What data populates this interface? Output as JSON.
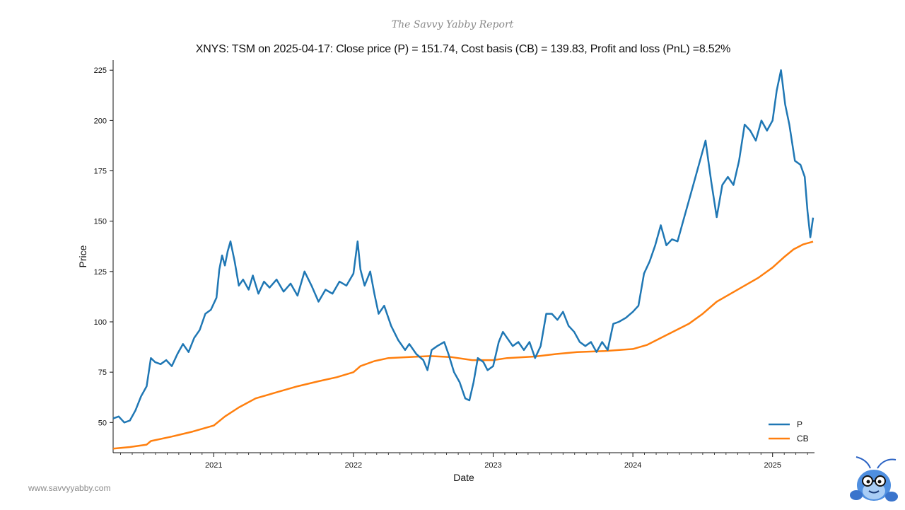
{
  "header": {
    "report_name": "The Savvy Yabby Report"
  },
  "footer": {
    "website": "www.savvyyabby.com"
  },
  "logo": {
    "icon": "yabby-mascot-icon"
  },
  "chart_data": {
    "type": "line",
    "title": "XNYS: TSM on 2025-04-17: Close price (P) = 151.74, Cost basis (CB) = 139.83, Profit and loss (PnL) =8.52%",
    "xlabel": "Date",
    "ylabel": "Price",
    "xlim": [
      2020.28,
      2025.3
    ],
    "ylim": [
      35,
      230
    ],
    "yticks": [
      50,
      75,
      100,
      125,
      150,
      175,
      200,
      225
    ],
    "xticks": [
      {
        "value": 2021,
        "label": "2021"
      },
      {
        "value": 2022,
        "label": "2022"
      },
      {
        "value": 2023,
        "label": "2023"
      },
      {
        "value": 2024,
        "label": "2024"
      },
      {
        "value": 2025,
        "label": "2025"
      }
    ],
    "legend": {
      "position": "lower-right",
      "entries": [
        "P",
        "CB"
      ]
    },
    "series": [
      {
        "name": "P",
        "color": "#1f77b4",
        "points": [
          [
            2020.28,
            52
          ],
          [
            2020.32,
            53
          ],
          [
            2020.36,
            50
          ],
          [
            2020.4,
            51
          ],
          [
            2020.44,
            56
          ],
          [
            2020.48,
            63
          ],
          [
            2020.52,
            68
          ],
          [
            2020.55,
            82
          ],
          [
            2020.58,
            80
          ],
          [
            2020.62,
            79
          ],
          [
            2020.66,
            81
          ],
          [
            2020.7,
            78
          ],
          [
            2020.74,
            84
          ],
          [
            2020.78,
            89
          ],
          [
            2020.82,
            85
          ],
          [
            2020.86,
            92
          ],
          [
            2020.9,
            96
          ],
          [
            2020.94,
            104
          ],
          [
            2020.98,
            106
          ],
          [
            2021.02,
            112
          ],
          [
            2021.04,
            126
          ],
          [
            2021.06,
            133
          ],
          [
            2021.08,
            128
          ],
          [
            2021.1,
            135
          ],
          [
            2021.12,
            140
          ],
          [
            2021.15,
            130
          ],
          [
            2021.18,
            118
          ],
          [
            2021.21,
            121
          ],
          [
            2021.25,
            116
          ],
          [
            2021.28,
            123
          ],
          [
            2021.32,
            114
          ],
          [
            2021.36,
            120
          ],
          [
            2021.4,
            117
          ],
          [
            2021.45,
            121
          ],
          [
            2021.5,
            115
          ],
          [
            2021.55,
            119
          ],
          [
            2021.6,
            113
          ],
          [
            2021.65,
            125
          ],
          [
            2021.7,
            118
          ],
          [
            2021.75,
            110
          ],
          [
            2021.8,
            116
          ],
          [
            2021.85,
            114
          ],
          [
            2021.9,
            120
          ],
          [
            2021.95,
            118
          ],
          [
            2022.0,
            124
          ],
          [
            2022.03,
            140
          ],
          [
            2022.05,
            126
          ],
          [
            2022.08,
            118
          ],
          [
            2022.12,
            125
          ],
          [
            2022.15,
            114
          ],
          [
            2022.18,
            104
          ],
          [
            2022.22,
            108
          ],
          [
            2022.27,
            98
          ],
          [
            2022.32,
            91
          ],
          [
            2022.37,
            86
          ],
          [
            2022.4,
            89
          ],
          [
            2022.45,
            84
          ],
          [
            2022.5,
            81
          ],
          [
            2022.53,
            76
          ],
          [
            2022.56,
            86
          ],
          [
            2022.6,
            88
          ],
          [
            2022.65,
            90
          ],
          [
            2022.68,
            84
          ],
          [
            2022.72,
            75
          ],
          [
            2022.76,
            70
          ],
          [
            2022.8,
            62
          ],
          [
            2022.83,
            61
          ],
          [
            2022.86,
            70
          ],
          [
            2022.89,
            82
          ],
          [
            2022.93,
            80
          ],
          [
            2022.96,
            76
          ],
          [
            2023.0,
            78
          ],
          [
            2023.04,
            90
          ],
          [
            2023.07,
            95
          ],
          [
            2023.1,
            92
          ],
          [
            2023.14,
            88
          ],
          [
            2023.18,
            90
          ],
          [
            2023.22,
            86
          ],
          [
            2023.26,
            90
          ],
          [
            2023.3,
            82
          ],
          [
            2023.34,
            88
          ],
          [
            2023.38,
            104
          ],
          [
            2023.42,
            104
          ],
          [
            2023.46,
            101
          ],
          [
            2023.5,
            105
          ],
          [
            2023.54,
            98
          ],
          [
            2023.58,
            95
          ],
          [
            2023.62,
            90
          ],
          [
            2023.66,
            88
          ],
          [
            2023.7,
            90
          ],
          [
            2023.74,
            85
          ],
          [
            2023.78,
            90
          ],
          [
            2023.82,
            86
          ],
          [
            2023.86,
            99
          ],
          [
            2023.9,
            100
          ],
          [
            2023.95,
            102
          ],
          [
            2024.0,
            105
          ],
          [
            2024.04,
            108
          ],
          [
            2024.08,
            124
          ],
          [
            2024.12,
            130
          ],
          [
            2024.16,
            138
          ],
          [
            2024.2,
            148
          ],
          [
            2024.24,
            138
          ],
          [
            2024.28,
            141
          ],
          [
            2024.32,
            140
          ],
          [
            2024.36,
            150
          ],
          [
            2024.4,
            160
          ],
          [
            2024.44,
            170
          ],
          [
            2024.48,
            180
          ],
          [
            2024.52,
            190
          ],
          [
            2024.56,
            170
          ],
          [
            2024.6,
            152
          ],
          [
            2024.64,
            168
          ],
          [
            2024.68,
            172
          ],
          [
            2024.72,
            168
          ],
          [
            2024.76,
            180
          ],
          [
            2024.8,
            198
          ],
          [
            2024.84,
            195
          ],
          [
            2024.88,
            190
          ],
          [
            2024.92,
            200
          ],
          [
            2024.96,
            195
          ],
          [
            2025.0,
            200
          ],
          [
            2025.03,
            215
          ],
          [
            2025.06,
            225
          ],
          [
            2025.09,
            208
          ],
          [
            2025.12,
            198
          ],
          [
            2025.16,
            180
          ],
          [
            2025.2,
            178
          ],
          [
            2025.23,
            172
          ],
          [
            2025.25,
            155
          ],
          [
            2025.27,
            142
          ],
          [
            2025.29,
            151.74
          ]
        ]
      },
      {
        "name": "CB",
        "color": "#ff7f0e",
        "points": [
          [
            2020.28,
            37
          ],
          [
            2020.4,
            37.8
          ],
          [
            2020.52,
            39
          ],
          [
            2020.55,
            40.8
          ],
          [
            2020.7,
            43
          ],
          [
            2020.85,
            45.5
          ],
          [
            2021.0,
            48.5
          ],
          [
            2021.08,
            53
          ],
          [
            2021.18,
            57.5
          ],
          [
            2021.3,
            62
          ],
          [
            2021.45,
            65
          ],
          [
            2021.6,
            68
          ],
          [
            2021.75,
            70.5
          ],
          [
            2021.88,
            72.5
          ],
          [
            2022.0,
            75
          ],
          [
            2022.05,
            78
          ],
          [
            2022.15,
            80.5
          ],
          [
            2022.25,
            82
          ],
          [
            2022.4,
            82.5
          ],
          [
            2022.55,
            83
          ],
          [
            2022.7,
            82.5
          ],
          [
            2022.85,
            81
          ],
          [
            2023.0,
            81
          ],
          [
            2023.1,
            82
          ],
          [
            2023.3,
            82.8
          ],
          [
            2023.45,
            84
          ],
          [
            2023.6,
            85
          ],
          [
            2023.8,
            85.5
          ],
          [
            2024.0,
            86.5
          ],
          [
            2024.1,
            88.5
          ],
          [
            2024.2,
            92
          ],
          [
            2024.3,
            95.5
          ],
          [
            2024.4,
            99
          ],
          [
            2024.5,
            104
          ],
          [
            2024.6,
            110
          ],
          [
            2024.7,
            114
          ],
          [
            2024.8,
            118
          ],
          [
            2024.9,
            122
          ],
          [
            2025.0,
            127
          ],
          [
            2025.08,
            132
          ],
          [
            2025.15,
            136
          ],
          [
            2025.22,
            138.5
          ],
          [
            2025.29,
            139.83
          ]
        ]
      }
    ]
  }
}
